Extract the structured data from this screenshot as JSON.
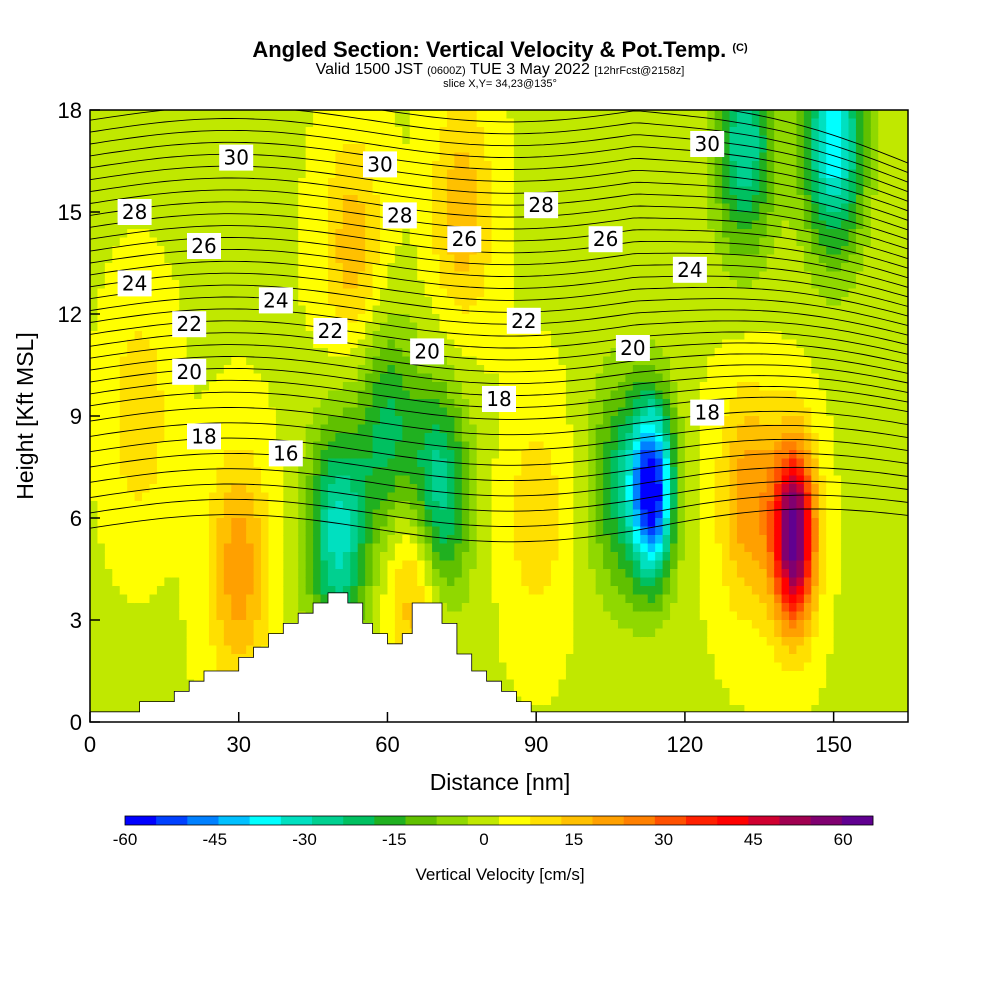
{
  "header": {
    "title_main": "Angled Section: Vertical Velocity & Pot.Temp.",
    "title_mark": "(C)",
    "subtitle_valid": "Valid 1500 JST",
    "subtitle_z": "(0600Z)",
    "subtitle_date": "TUE 3 May 2022",
    "subtitle_fcst": "[12hrFcst@2158z]",
    "slice": "slice X,Y= 34,23@135°"
  },
  "chart_data": {
    "type": "heatmap",
    "xlabel": "Distance [nm]",
    "ylabel": "Height [Kft MSL]",
    "xlim": [
      0,
      165
    ],
    "ylim": [
      0,
      18
    ],
    "xticks": [
      "0",
      "30",
      "60",
      "90",
      "120",
      "150"
    ],
    "yticks": [
      "0",
      "3",
      "6",
      "9",
      "12",
      "15",
      "18"
    ],
    "colorbar": {
      "title": "Vertical Velocity [cm/s]",
      "tick_labels": [
        "-60",
        "-45",
        "-30",
        "-15",
        "0",
        "15",
        "30",
        "45",
        "60"
      ],
      "colors": [
        "#0000ff",
        "#0040ff",
        "#0080ff",
        "#00c0ff",
        "#00ffff",
        "#00e0c0",
        "#00d090",
        "#00c060",
        "#20b020",
        "#60c000",
        "#90d800",
        "#c0e800",
        "#ffff00",
        "#ffe000",
        "#ffc000",
        "#ffa000",
        "#ff8000",
        "#ff5000",
        "#ff2000",
        "#ff0000",
        "#d00030",
        "#a00050",
        "#800070",
        "#600090"
      ]
    },
    "velocity_features": [
      {
        "x": 50,
        "y": 5.5,
        "w": -33
      },
      {
        "x": 70,
        "y": 6.5,
        "w": -35
      },
      {
        "x": 113.5,
        "y": 6.8,
        "w": -58
      },
      {
        "x": 142,
        "y": 5.5,
        "w": 62
      },
      {
        "x": 133,
        "y": 6.5,
        "w": 20
      },
      {
        "x": 30,
        "y": 4.5,
        "w": 20
      },
      {
        "x": 66,
        "y": 4.5,
        "w": 22
      },
      {
        "x": 150,
        "y": 17,
        "w": -40
      },
      {
        "x": 132,
        "y": 17,
        "w": -30
      },
      {
        "x": 107,
        "y": 7,
        "w": -22
      },
      {
        "x": 60,
        "y": 8.5,
        "w": -22
      },
      {
        "x": 75,
        "y": 15,
        "w": 15
      },
      {
        "x": 53,
        "y": 14,
        "w": 14
      },
      {
        "x": 90,
        "y": 6,
        "w": 10
      },
      {
        "x": 10,
        "y": 9,
        "w": 10
      }
    ],
    "isentropes": {
      "levels": [
        16,
        18,
        20,
        22,
        24,
        26,
        28,
        30
      ],
      "labels": [
        {
          "text": "30",
          "x": 29.5,
          "y": 16.6
        },
        {
          "text": "30",
          "x": 58.5,
          "y": 16.4
        },
        {
          "text": "30",
          "x": 124.5,
          "y": 17.0
        },
        {
          "text": "28",
          "x": 9,
          "y": 15.0
        },
        {
          "text": "28",
          "x": 62.5,
          "y": 14.9
        },
        {
          "text": "28",
          "x": 91,
          "y": 15.2
        },
        {
          "text": "26",
          "x": 23,
          "y": 14.0
        },
        {
          "text": "26",
          "x": 75.5,
          "y": 14.2
        },
        {
          "text": "26",
          "x": 104,
          "y": 14.2
        },
        {
          "text": "24",
          "x": 9,
          "y": 12.9
        },
        {
          "text": "24",
          "x": 37.5,
          "y": 12.4
        },
        {
          "text": "24",
          "x": 121,
          "y": 13.3
        },
        {
          "text": "22",
          "x": 20,
          "y": 11.7
        },
        {
          "text": "22",
          "x": 48.5,
          "y": 11.5
        },
        {
          "text": "22",
          "x": 87.5,
          "y": 11.8
        },
        {
          "text": "20",
          "x": 20,
          "y": 10.3
        },
        {
          "text": "20",
          "x": 68,
          "y": 10.9
        },
        {
          "text": "20",
          "x": 109.5,
          "y": 11.0
        },
        {
          "text": "18",
          "x": 23,
          "y": 8.4
        },
        {
          "text": "18",
          "x": 82.5,
          "y": 9.5
        },
        {
          "text": "18",
          "x": 124.5,
          "y": 9.1
        },
        {
          "text": "16",
          "x": 39.5,
          "y": 7.9
        }
      ]
    },
    "terrain": [
      [
        0,
        0.3
      ],
      [
        10,
        0.3
      ],
      [
        10,
        0.6
      ],
      [
        17,
        0.6
      ],
      [
        17,
        0.9
      ],
      [
        20,
        0.9
      ],
      [
        20,
        1.2
      ],
      [
        23,
        1.2
      ],
      [
        23,
        1.5
      ],
      [
        30,
        1.5
      ],
      [
        30,
        1.9
      ],
      [
        33,
        1.9
      ],
      [
        33,
        2.2
      ],
      [
        36,
        2.2
      ],
      [
        36,
        2.6
      ],
      [
        39,
        2.6
      ],
      [
        39,
        2.9
      ],
      [
        42,
        2.9
      ],
      [
        42,
        3.2
      ],
      [
        45,
        3.2
      ],
      [
        45,
        3.5
      ],
      [
        48,
        3.5
      ],
      [
        48,
        3.8
      ],
      [
        52,
        3.8
      ],
      [
        52,
        3.5
      ],
      [
        55,
        3.5
      ],
      [
        55,
        2.9
      ],
      [
        57,
        2.9
      ],
      [
        57,
        2.6
      ],
      [
        60,
        2.6
      ],
      [
        60,
        2.3
      ],
      [
        63,
        2.3
      ],
      [
        63,
        2.6
      ],
      [
        65,
        2.6
      ],
      [
        65,
        3.5
      ],
      [
        71,
        3.5
      ],
      [
        71,
        2.9
      ],
      [
        74,
        2.9
      ],
      [
        74,
        2.0
      ],
      [
        77,
        2.0
      ],
      [
        77,
        1.5
      ],
      [
        80,
        1.5
      ],
      [
        80,
        1.2
      ],
      [
        83,
        1.2
      ],
      [
        83,
        0.9
      ],
      [
        86,
        0.9
      ],
      [
        86,
        0.6
      ],
      [
        89,
        0.6
      ],
      [
        89,
        0.3
      ],
      [
        165,
        0.3
      ]
    ]
  }
}
